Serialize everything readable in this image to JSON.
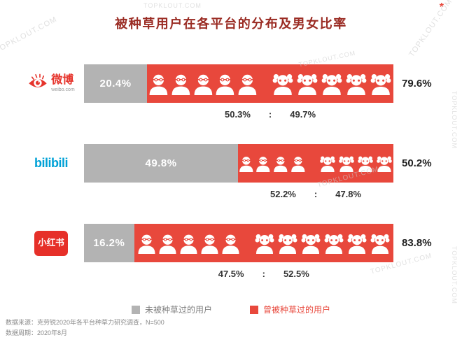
{
  "page": {
    "watermark": "TOPKLOUT.COM",
    "asterisk": "*"
  },
  "title": "被种草用户在各平台的分布及男女比率",
  "legend": {
    "not_planted": {
      "label": "未被种草过的用户",
      "color": "#b3b3b3",
      "text_color": "#7f7f7f"
    },
    "planted": {
      "label": "曾被种草过的用户",
      "color": "#e8483c",
      "text_color": "#e8483c"
    }
  },
  "footer": {
    "source": "数据来源：克劳锐2020年各平台种草力研究调查，N=500",
    "period": "数据周期：2020年8月"
  },
  "colors": {
    "title": "#9a2b23",
    "bar_red": "#e8483c",
    "bar_gray": "#b3b3b3",
    "weibo_red": "#e6342c",
    "bilibili_blue": "#00a1d6",
    "xiaohongshu_red": "#e63029"
  },
  "chart_data": {
    "type": "bar",
    "orientation": "horizontal",
    "stacked": true,
    "unit": "%",
    "title": "被种草用户在各平台的分布及男女比率",
    "categories": [
      "微博",
      "bilibili",
      "小红书"
    ],
    "series": [
      {
        "name": "未被种草过的用户",
        "color": "#b3b3b3",
        "values": [
          20.4,
          49.8,
          16.2
        ]
      },
      {
        "name": "曾被种草过的用户",
        "color": "#e8483c",
        "values": [
          79.6,
          50.2,
          83.8
        ]
      }
    ],
    "x_range": [
      0,
      100
    ],
    "legend_position": "bottom",
    "gender_ratios": [
      {
        "platform": "微博",
        "male": 50.3,
        "female": 49.7
      },
      {
        "platform": "bilibili",
        "male": 52.2,
        "female": 47.8
      },
      {
        "platform": "小红书",
        "male": 47.5,
        "female": 52.5
      }
    ],
    "platforms": [
      {
        "name": "微博",
        "logo_text": "微博",
        "logo_domain": "weibo.com",
        "not_planted": 20.4,
        "planted": 79.6,
        "not_planted_label": "20.4%",
        "planted_label": "79.6%",
        "male": 50.3,
        "female": 49.7,
        "male_label": "50.3%",
        "female_label": "49.7%",
        "ratio_colon": ":",
        "male_icons": 5,
        "female_icons": 5,
        "icon_size": 32
      },
      {
        "name": "bilibili",
        "logo_text": "bilibili",
        "not_planted": 49.8,
        "planted": 50.2,
        "not_planted_label": "49.8%",
        "planted_label": "50.2%",
        "male": 52.2,
        "female": 47.8,
        "male_label": "52.2%",
        "female_label": "47.8%",
        "ratio_colon": ":",
        "male_icons": 4,
        "female_icons": 4,
        "icon_size": 24
      },
      {
        "name": "小红书",
        "logo_text": "小红书",
        "not_planted": 16.2,
        "planted": 83.8,
        "not_planted_label": "16.2%",
        "planted_label": "83.8%",
        "male": 47.5,
        "female": 52.5,
        "male_label": "47.5%",
        "female_label": "52.5%",
        "ratio_colon": ":",
        "male_icons": 5,
        "female_icons": 6,
        "icon_size": 30
      }
    ]
  }
}
